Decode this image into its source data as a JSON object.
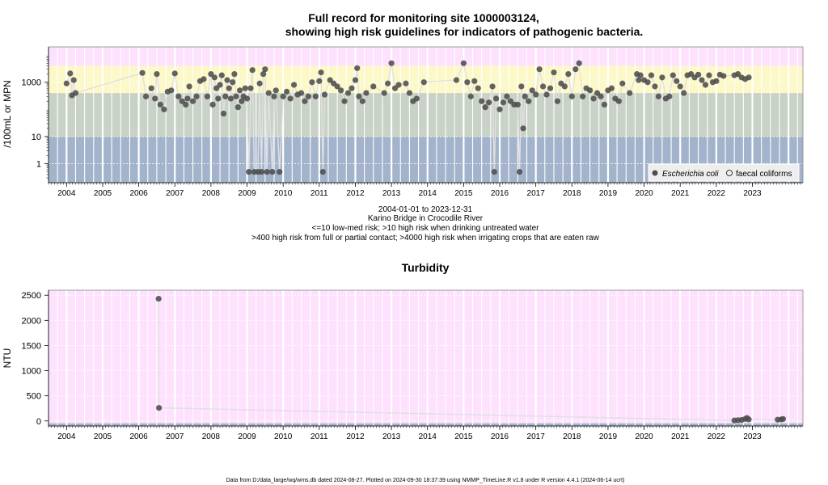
{
  "colors": {
    "zone_pink": "#fde1fd",
    "zone_yellow": "#fdf8c8",
    "zone_green": "#c8d2c6",
    "zone_blue": "#a3b3cc",
    "grid": "#ffffff",
    "point": "#4d4d4d",
    "line": "#e0e0e0"
  },
  "footer": "Data from D:/data_large/wq/wms.db dated 2024-08-27. Plotted on 2024-09-30 18:37:39 using NMMP_TimeLine.R v1.8 under R version 4.4.1 (2024-06-14 ucrt)",
  "chart_data": [
    {
      "type": "scatter",
      "title": "Full record for monitoring site 1000003124,",
      "subtitle": "showing high risk guidelines for indicators of pathogenic bacteria.",
      "ylabel": "/100mL or MPN",
      "xlabel": "",
      "y_scale": "log",
      "xlim": [
        2003.5,
        2024.4
      ],
      "ylim": [
        0.2,
        20000
      ],
      "yticks": [
        {
          "v": 1,
          "label": "1"
        },
        {
          "v": 10,
          "label": "10"
        },
        {
          "v": 1000,
          "label": "1000"
        }
      ],
      "xticks": [
        "2004",
        "2005",
        "2006",
        "2007",
        "2008",
        "2009",
        "2010",
        "2011",
        "2012",
        "2013",
        "2014",
        "2015",
        "2016",
        "2017",
        "2018",
        "2019",
        "2020",
        "2021",
        "2022",
        "2023"
      ],
      "grid": true,
      "legend_position": "bottom-right",
      "legend": [
        {
          "label": "Escherichia coli",
          "marker": "filled"
        },
        {
          "label": "faecal coliforms",
          "marker": "open"
        }
      ],
      "zones": [
        {
          "from": 0.2,
          "to": 10,
          "color": "#a3b3cc"
        },
        {
          "from": 10,
          "to": 400,
          "color": "#c8d2c6"
        },
        {
          "from": 400,
          "to": 4000,
          "color": "#fdf8c8"
        },
        {
          "from": 4000,
          "to": 20000,
          "color": "#fde1fd"
        }
      ],
      "caption": [
        "2004-01-01 to 2023-12-31",
        "Karino Bridge in Crocodile River",
        "<=10 low-med risk; >10 high risk when drinking untreated water",
        ">400 high risk from full or partial contact; >4000 high risk when irrigating crops that are eaten raw"
      ],
      "series": [
        {
          "name": "Escherichia coli",
          "points": [
            [
              2004.0,
              900
            ],
            [
              2004.1,
              2100
            ],
            [
              2004.15,
              330
            ],
            [
              2004.2,
              1200
            ],
            [
              2004.25,
              400
            ],
            [
              2006.1,
              2200
            ],
            [
              2006.2,
              300
            ],
            [
              2006.35,
              600
            ],
            [
              2006.45,
              250
            ],
            [
              2006.5,
              2000
            ],
            [
              2006.6,
              150
            ],
            [
              2006.7,
              100
            ],
            [
              2006.8,
              450
            ],
            [
              2006.9,
              500
            ],
            [
              2007.0,
              2100
            ],
            [
              2007.1,
              300
            ],
            [
              2007.2,
              200
            ],
            [
              2007.3,
              150
            ],
            [
              2007.35,
              250
            ],
            [
              2007.4,
              700
            ],
            [
              2007.5,
              200
            ],
            [
              2007.6,
              300
            ],
            [
              2007.7,
              1100
            ],
            [
              2007.8,
              1300
            ],
            [
              2007.9,
              300
            ],
            [
              2008.0,
              2000
            ],
            [
              2008.05,
              150
            ],
            [
              2008.1,
              1500
            ],
            [
              2008.15,
              600
            ],
            [
              2008.2,
              250
            ],
            [
              2008.25,
              800
            ],
            [
              2008.3,
              1800
            ],
            [
              2008.35,
              70
            ],
            [
              2008.4,
              300
            ],
            [
              2008.45,
              1200
            ],
            [
              2008.5,
              600
            ],
            [
              2008.55,
              250
            ],
            [
              2008.6,
              1000
            ],
            [
              2008.65,
              2000
            ],
            [
              2008.7,
              300
            ],
            [
              2008.75,
              120
            ],
            [
              2008.8,
              500
            ],
            [
              2008.85,
              200
            ],
            [
              2008.9,
              300
            ],
            [
              2008.95,
              600
            ],
            [
              2009.0,
              250
            ],
            [
              2009.05,
              0.5
            ],
            [
              2009.1,
              600
            ],
            [
              2009.15,
              2800
            ],
            [
              2009.2,
              0.5
            ],
            [
              2009.3,
              0.5
            ],
            [
              2009.35,
              900
            ],
            [
              2009.4,
              0.5
            ],
            [
              2009.45,
              2000
            ],
            [
              2009.5,
              3000
            ],
            [
              2009.55,
              0.5
            ],
            [
              2009.6,
              400
            ],
            [
              2009.7,
              0.5
            ],
            [
              2009.75,
              300
            ],
            [
              2009.8,
              500
            ],
            [
              2009.9,
              0.5
            ],
            [
              2010.0,
              300
            ],
            [
              2010.1,
              450
            ],
            [
              2010.2,
              250
            ],
            [
              2010.3,
              800
            ],
            [
              2010.4,
              350
            ],
            [
              2010.5,
              400
            ],
            [
              2010.6,
              200
            ],
            [
              2010.7,
              300
            ],
            [
              2010.8,
              1000
            ],
            [
              2010.9,
              300
            ],
            [
              2011.0,
              1100
            ],
            [
              2011.05,
              2300
            ],
            [
              2011.1,
              0.5
            ],
            [
              2011.15,
              350
            ],
            [
              2011.3,
              1200
            ],
            [
              2011.4,
              900
            ],
            [
              2011.5,
              700
            ],
            [
              2011.6,
              500
            ],
            [
              2011.7,
              200
            ],
            [
              2011.8,
              400
            ],
            [
              2011.9,
              600
            ],
            [
              2012.0,
              1200
            ],
            [
              2012.05,
              3300
            ],
            [
              2012.1,
              300
            ],
            [
              2012.2,
              200
            ],
            [
              2012.3,
              400
            ],
            [
              2012.5,
              700
            ],
            [
              2012.8,
              400
            ],
            [
              2012.9,
              900
            ],
            [
              2013.0,
              5000
            ],
            [
              2013.1,
              600
            ],
            [
              2013.2,
              800
            ],
            [
              2013.4,
              900
            ],
            [
              2013.5,
              400
            ],
            [
              2013.6,
              200
            ],
            [
              2013.7,
              250
            ],
            [
              2013.9,
              1000
            ],
            [
              2014.8,
              1200
            ],
            [
              2015.0,
              5000
            ],
            [
              2015.1,
              1000
            ],
            [
              2015.2,
              300
            ],
            [
              2015.3,
              1100
            ],
            [
              2015.4,
              600
            ],
            [
              2015.5,
              200
            ],
            [
              2015.6,
              120
            ],
            [
              2015.7,
              180
            ],
            [
              2015.8,
              700
            ],
            [
              2015.85,
              0.5
            ],
            [
              2015.9,
              250
            ],
            [
              2016.0,
              100
            ],
            [
              2016.1,
              180
            ],
            [
              2016.2,
              300
            ],
            [
              2016.3,
              200
            ],
            [
              2016.4,
              150
            ],
            [
              2016.5,
              150
            ],
            [
              2016.55,
              0.5
            ],
            [
              2016.6,
              700
            ],
            [
              2016.65,
              20
            ],
            [
              2016.7,
              300
            ],
            [
              2016.8,
              200
            ],
            [
              2016.9,
              500
            ],
            [
              2017.0,
              350
            ],
            [
              2017.1,
              3000
            ],
            [
              2017.2,
              700
            ],
            [
              2017.3,
              350
            ],
            [
              2017.4,
              600
            ],
            [
              2017.5,
              2300
            ],
            [
              2017.6,
              200
            ],
            [
              2017.7,
              900
            ],
            [
              2017.8,
              700
            ],
            [
              2017.9,
              2000
            ],
            [
              2018.0,
              300
            ],
            [
              2018.1,
              3000
            ],
            [
              2018.2,
              5000
            ],
            [
              2018.3,
              300
            ],
            [
              2018.4,
              600
            ],
            [
              2018.5,
              500
            ],
            [
              2018.6,
              250
            ],
            [
              2018.7,
              400
            ],
            [
              2018.8,
              300
            ],
            [
              2018.9,
              150
            ],
            [
              2019.0,
              500
            ],
            [
              2019.1,
              600
            ],
            [
              2019.2,
              250
            ],
            [
              2019.3,
              200
            ],
            [
              2019.4,
              900
            ],
            [
              2019.6,
              400
            ],
            [
              2019.8,
              2000
            ],
            [
              2019.85,
              1200
            ],
            [
              2019.9,
              1800
            ],
            [
              2020.0,
              1200
            ],
            [
              2020.1,
              1000
            ],
            [
              2020.2,
              1800
            ],
            [
              2020.3,
              700
            ],
            [
              2020.4,
              300
            ],
            [
              2020.5,
              1500
            ],
            [
              2020.6,
              250
            ],
            [
              2020.7,
              300
            ],
            [
              2020.8,
              1800
            ],
            [
              2020.9,
              1100
            ],
            [
              2021.0,
              700
            ],
            [
              2021.1,
              400
            ],
            [
              2021.2,
              1800
            ],
            [
              2021.3,
              2000
            ],
            [
              2021.4,
              1500
            ],
            [
              2021.5,
              1900
            ],
            [
              2021.6,
              1200
            ],
            [
              2021.7,
              800
            ],
            [
              2021.8,
              1800
            ],
            [
              2021.9,
              1000
            ],
            [
              2022.0,
              1100
            ],
            [
              2022.1,
              1900
            ],
            [
              2022.2,
              1700
            ],
            [
              2022.5,
              1800
            ],
            [
              2022.6,
              2000
            ],
            [
              2022.7,
              1500
            ],
            [
              2022.8,
              1300
            ],
            [
              2022.9,
              1500
            ]
          ]
        },
        {
          "name": "faecal coliforms",
          "points": []
        }
      ]
    },
    {
      "type": "scatter",
      "title": "Turbidity",
      "xlabel": "",
      "ylabel": "NTU",
      "xlim": [
        2003.5,
        2024.4
      ],
      "ylim": [
        -100,
        2600
      ],
      "yticks": [
        {
          "v": 0,
          "label": "0"
        },
        {
          "v": 500,
          "label": "500"
        },
        {
          "v": 1000,
          "label": "1000"
        },
        {
          "v": 1500,
          "label": "1500"
        },
        {
          "v": 2000,
          "label": "2000"
        },
        {
          "v": 2500,
          "label": "2500"
        }
      ],
      "xticks": [
        "2004",
        "2005",
        "2006",
        "2007",
        "2008",
        "2009",
        "2010",
        "2011",
        "2012",
        "2013",
        "2014",
        "2015",
        "2016",
        "2017",
        "2018",
        "2019",
        "2020",
        "2021",
        "2022",
        "2023"
      ],
      "grid": true,
      "series": [
        {
          "name": "Turbidity",
          "points": [
            [
              2006.55,
              2430
            ],
            [
              2006.56,
              260
            ],
            [
              2022.5,
              10
            ],
            [
              2022.6,
              15
            ],
            [
              2022.7,
              20
            ],
            [
              2022.8,
              40
            ],
            [
              2022.85,
              60
            ],
            [
              2022.9,
              30
            ],
            [
              2023.7,
              25
            ],
            [
              2023.8,
              30
            ],
            [
              2023.85,
              40
            ]
          ]
        }
      ]
    }
  ]
}
